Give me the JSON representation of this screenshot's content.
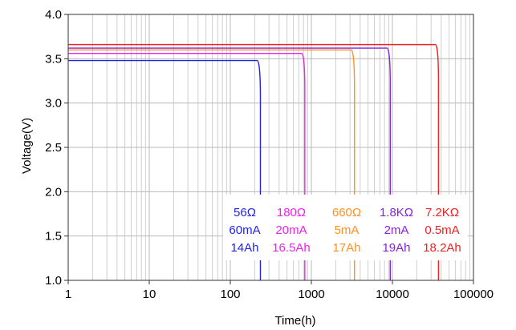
{
  "chart_data": {
    "type": "line",
    "title": "",
    "xlabel": "Time(h)",
    "ylabel": "Voltage(V)",
    "xscale": "log",
    "xlim": [
      1,
      100000
    ],
    "ylim": [
      1.0,
      4.0
    ],
    "x_ticks": [
      1,
      10,
      100,
      1000,
      10000,
      100000
    ],
    "x_tick_labels": [
      "1",
      "10",
      "100",
      "1000",
      "10000",
      "100000"
    ],
    "y_ticks": [
      1.0,
      1.5,
      2.0,
      2.5,
      3.0,
      3.5,
      4.0
    ],
    "y_tick_labels": [
      "1.0",
      "1.5",
      "2.0",
      "2.5",
      "3.0",
      "3.5",
      "4.0"
    ],
    "grid": true,
    "legend_position": "bottom-right",
    "series": [
      {
        "color": "#2222ee",
        "plateau_voltage": 3.48,
        "knee_time": 215,
        "end_time": 235,
        "legend": [
          "56Ω",
          "60mA",
          "14Ah"
        ]
      },
      {
        "color": "#ee22ee",
        "plateau_voltage": 3.56,
        "knee_time": 760,
        "end_time": 830,
        "legend": [
          "180Ω",
          "20mA",
          "16.5Ah"
        ]
      },
      {
        "color": "#ff9020",
        "plateau_voltage": 3.6,
        "knee_time": 3100,
        "end_time": 3400,
        "legend": [
          "660Ω",
          "5mA",
          "17Ah"
        ]
      },
      {
        "color": "#8822dd",
        "plateau_voltage": 3.62,
        "knee_time": 8600,
        "end_time": 9400,
        "legend": [
          "1.8KΩ",
          "2mA",
          "19Ah"
        ]
      },
      {
        "color": "#ee2222",
        "plateau_voltage": 3.66,
        "knee_time": 34000,
        "end_time": 37000,
        "legend": [
          "7.2KΩ",
          "0.5mA",
          "18.2Ah"
        ]
      }
    ]
  }
}
